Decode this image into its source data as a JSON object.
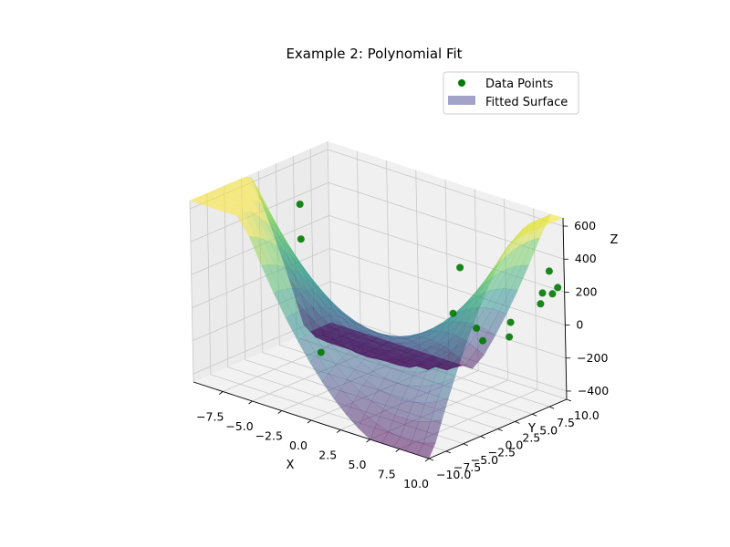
{
  "chart_data": {
    "type": "scatter",
    "title": "Example 2: Polynomial Fit",
    "xlabel": "X",
    "ylabel": "Y",
    "zlabel": "Z",
    "xlim": [
      -10,
      10
    ],
    "ylim": [
      -10,
      10
    ],
    "zlim": [
      -450,
      650
    ],
    "x_ticks": [
      "−7.5",
      "−5.0",
      "−2.5",
      "0.0",
      "2.5",
      "5.0",
      "7.5",
      "10.0"
    ],
    "y_ticks": [
      "−10.0",
      "−7.5",
      "−5.0",
      "−2.5",
      "0.0",
      "2.5",
      "5.0",
      "7.5",
      "10.0"
    ],
    "z_ticks": [
      "−400",
      "−200",
      "0",
      "200",
      "400",
      "600"
    ],
    "grid": true,
    "legend": {
      "placement": "top-right",
      "entries": [
        "Data Points",
        "Fitted Surface"
      ]
    },
    "series": [
      {
        "name": "Data Points",
        "color": "#007a00",
        "points": [
          {
            "x": -9.5,
            "y": 5.0,
            "z": 370
          },
          {
            "x": -9.0,
            "y": 4.2,
            "z": 185
          },
          {
            "x": -3.5,
            "y": -2.5,
            "z": -255
          },
          {
            "x": 2.0,
            "y": 8.5,
            "z": 190
          },
          {
            "x": 4.0,
            "y": 4.0,
            "z": 40
          },
          {
            "x": 6.8,
            "y": 2.6,
            "z": 40
          },
          {
            "x": 7.2,
            "y": 2.8,
            "z": -30
          },
          {
            "x": 9.2,
            "y": 3.5,
            "z": 115
          },
          {
            "x": 9.0,
            "y": 3.6,
            "z": 20
          },
          {
            "x": 9.6,
            "y": 7.2,
            "z": 170
          },
          {
            "x": 9.6,
            "y": 7.5,
            "z": 230
          },
          {
            "x": 9.8,
            "y": 8.2,
            "z": 355
          },
          {
            "x": 9.8,
            "y": 8.6,
            "z": 210
          },
          {
            "x": 9.9,
            "y": 9.2,
            "z": 240
          }
        ]
      },
      {
        "name": "Fitted Surface",
        "type": "surface",
        "colormap": "viridis",
        "colors": [
          "#440154",
          "#3b528b",
          "#21918c",
          "#5ec962",
          "#fde725"
        ],
        "legend_color": "#a3a3c9",
        "alpha": 0.5
      }
    ]
  }
}
